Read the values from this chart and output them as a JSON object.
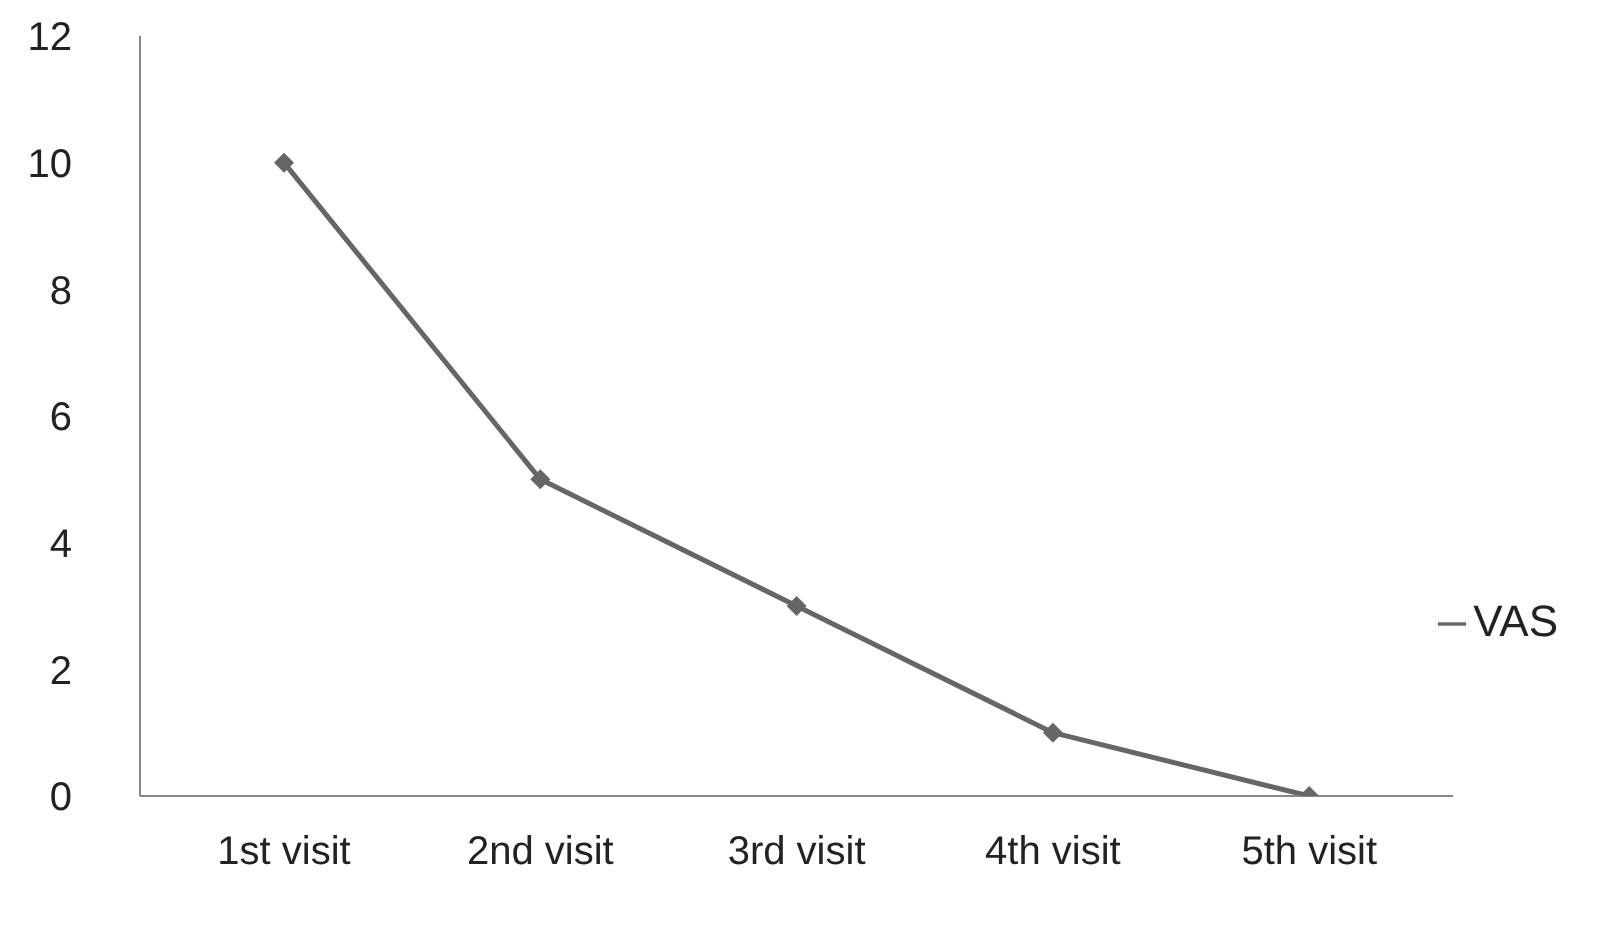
{
  "chart_data": {
    "type": "line",
    "categories": [
      "1st visit",
      "2nd visit",
      "3rd visit",
      "4th visit",
      "5th visit"
    ],
    "series": [
      {
        "name": "VAS",
        "color": "#666666",
        "values": [
          10,
          5,
          3,
          1,
          0
        ]
      }
    ],
    "ylim": [
      0,
      12
    ],
    "yticks": [
      0,
      2,
      4,
      6,
      8,
      10,
      12
    ],
    "grid": false,
    "legend": "right",
    "marker": "diamond"
  }
}
